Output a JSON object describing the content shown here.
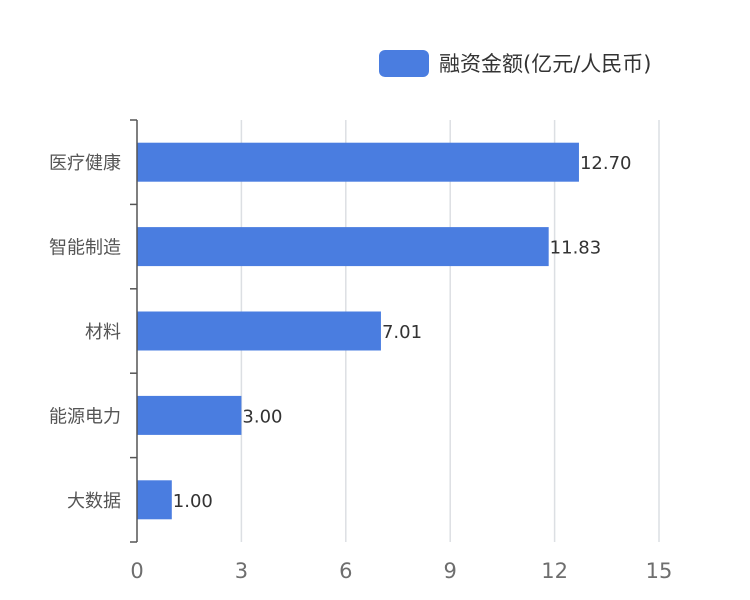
{
  "chart_data": {
    "type": "bar",
    "orientation": "horizontal",
    "categories": [
      "医疗健康",
      "智能制造",
      "材料",
      "能源电力",
      "大数据"
    ],
    "series": [
      {
        "name": "融资金额(亿元/人民币)",
        "values": [
          12.7,
          11.83,
          7.01,
          3.0,
          1.0
        ],
        "value_labels": [
          "12.70",
          "11.83",
          "7.01",
          "3.00",
          "1.00"
        ],
        "color": "#4a7de0"
      }
    ],
    "xlim": [
      0,
      15
    ],
    "x_ticks": [
      "0",
      "3",
      "6",
      "9",
      "12",
      "15"
    ],
    "grid": "vertical",
    "legend_position": "top-right",
    "title": "",
    "xlabel": "",
    "ylabel": ""
  }
}
